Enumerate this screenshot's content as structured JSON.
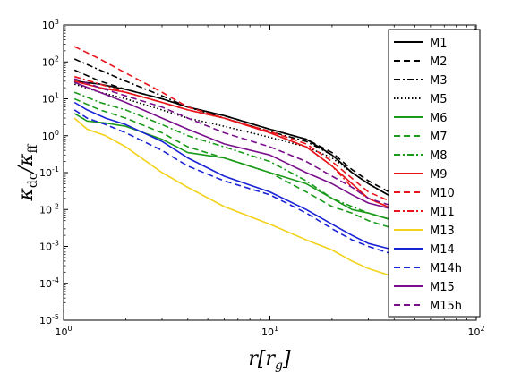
{
  "chart_data": {
    "type": "line",
    "title": "",
    "xlabel": "r[r_g]",
    "ylabel": "κ_dc/κ_ff",
    "x_scale": "log",
    "y_scale": "log",
    "xlim": [
      1,
      100
    ],
    "ylim": [
      1e-05,
      1000
    ],
    "x_ticks": [
      {
        "value": 1,
        "base": "10",
        "exp": "0"
      },
      {
        "value": 10,
        "base": "10",
        "exp": "1"
      },
      {
        "value": 100,
        "base": "10",
        "exp": "2"
      }
    ],
    "y_ticks": [
      {
        "value": 1e-05,
        "base": "10",
        "exp": "-5"
      },
      {
        "value": 0.0001,
        "base": "10",
        "exp": "-4"
      },
      {
        "value": 0.001,
        "base": "10",
        "exp": "-3"
      },
      {
        "value": 0.01,
        "base": "10",
        "exp": "-2"
      },
      {
        "value": 0.1,
        "base": "10",
        "exp": "-1"
      },
      {
        "value": 1,
        "base": "10",
        "exp": "0"
      },
      {
        "value": 10,
        "base": "10",
        "exp": "1"
      },
      {
        "value": 100,
        "base": "10",
        "exp": "2"
      },
      {
        "value": 1000,
        "base": "10",
        "exp": "3"
      }
    ],
    "grid": false,
    "legend_position": "right",
    "series": [
      {
        "name": "M1",
        "color": "#000000",
        "dash": "solid",
        "x": [
          1.13,
          1.5,
          2,
          3,
          4,
          6,
          10,
          15,
          20,
          25,
          30,
          40,
          60
        ],
        "y": [
          30,
          25,
          18,
          10,
          6,
          3.5,
          1.5,
          0.8,
          0.3,
          0.1,
          0.05,
          0.02,
          0.01
        ]
      },
      {
        "name": "M2",
        "color": "#000000",
        "dash": "dashed",
        "x": [
          1.13,
          1.5,
          2,
          3,
          4,
          6,
          10,
          15,
          20,
          25,
          30,
          40,
          60
        ],
        "y": [
          60,
          30,
          18,
          10,
          6,
          3.5,
          1.5,
          0.8,
          0.35,
          0.12,
          0.06,
          0.025,
          0.01
        ]
      },
      {
        "name": "M3",
        "color": "#000000",
        "dash": "dashdot",
        "x": [
          1.13,
          1.5,
          2,
          3,
          4,
          6,
          10,
          15,
          20,
          25,
          30,
          40,
          60
        ],
        "y": [
          120,
          60,
          30,
          12,
          6,
          3,
          1.3,
          0.7,
          0.3,
          0.1,
          0.05,
          0.02,
          0.008
        ]
      },
      {
        "name": "M5",
        "color": "#000000",
        "dash": "dotted",
        "x": [
          1.13,
          1.5,
          2,
          3,
          4,
          6,
          10,
          15,
          20,
          25,
          30,
          40,
          60
        ],
        "y": [
          25,
          15,
          10,
          5,
          3,
          1.8,
          0.9,
          0.5,
          0.25,
          0.1,
          0.05,
          0.02,
          0.008
        ]
      },
      {
        "name": "M6",
        "color": "#1a9a1a",
        "dash": "solid",
        "x": [
          1.13,
          1.3,
          1.6,
          2,
          3,
          4,
          6,
          10,
          15,
          20,
          25,
          30,
          40,
          60
        ],
        "y": [
          4,
          2.5,
          2.2,
          1.8,
          0.8,
          0.35,
          0.25,
          0.1,
          0.05,
          0.02,
          0.01,
          0.008,
          0.005,
          0.003
        ]
      },
      {
        "name": "M7",
        "color": "#1a9a1a",
        "dash": "dashed",
        "x": [
          1.13,
          1.5,
          2,
          3,
          4,
          6,
          10,
          15,
          20,
          25,
          30,
          40,
          60
        ],
        "y": [
          10,
          5,
          3,
          1.2,
          0.5,
          0.25,
          0.1,
          0.03,
          0.012,
          0.008,
          0.005,
          0.003,
          0.002
        ]
      },
      {
        "name": "M8",
        "color": "#1a9a1a",
        "dash": "dashdot",
        "x": [
          1.13,
          1.5,
          2,
          3,
          4,
          6,
          10,
          15,
          20,
          25,
          30,
          40,
          60
        ],
        "y": [
          15,
          8,
          5,
          2,
          1,
          0.5,
          0.2,
          0.06,
          0.02,
          0.012,
          0.008,
          0.005,
          0.003
        ]
      },
      {
        "name": "M9",
        "color": "#e8141b",
        "dash": "solid",
        "x": [
          1.13,
          1.5,
          2,
          3,
          4,
          6,
          10,
          15,
          20,
          25,
          30,
          40,
          60
        ],
        "y": [
          30,
          20,
          15,
          8,
          5,
          3,
          1.2,
          0.5,
          0.15,
          0.05,
          0.02,
          0.01,
          0.005
        ]
      },
      {
        "name": "M10",
        "color": "#e8141b",
        "dash": "dashed",
        "x": [
          1.13,
          1.5,
          2,
          3,
          4,
          6,
          10,
          15,
          20,
          25,
          30,
          40,
          60
        ],
        "y": [
          260,
          120,
          50,
          15,
          6,
          3,
          1.3,
          0.6,
          0.2,
          0.07,
          0.03,
          0.015,
          0.008
        ]
      },
      {
        "name": "M11",
        "color": "#e8141b",
        "dash": "dashdot",
        "x": [
          1.13,
          1.5,
          2,
          3,
          4,
          6,
          10,
          15,
          20,
          25,
          30,
          40,
          60
        ],
        "y": [
          40,
          25,
          15,
          8,
          5,
          3,
          1.2,
          0.5,
          0.15,
          0.04,
          0.02,
          0.01,
          0.005
        ]
      },
      {
        "name": "M13",
        "color": "#f2d21a",
        "dash": "solid",
        "x": [
          1.13,
          1.3,
          1.6,
          2,
          3,
          4,
          6,
          10,
          15,
          20,
          25,
          30,
          40,
          60
        ],
        "y": [
          3,
          1.5,
          1,
          0.5,
          0.1,
          0.04,
          0.012,
          0.004,
          0.0015,
          0.0008,
          0.0004,
          0.00025,
          0.00015,
          0.0001
        ]
      },
      {
        "name": "M14",
        "color": "#1a23d6",
        "dash": "solid",
        "x": [
          1.13,
          1.3,
          1.6,
          2,
          3,
          4,
          6,
          10,
          15,
          20,
          25,
          30,
          40,
          60
        ],
        "y": [
          8,
          5,
          3,
          2,
          0.7,
          0.25,
          0.08,
          0.03,
          0.01,
          0.004,
          0.002,
          0.0012,
          0.0008,
          0.0005
        ]
      },
      {
        "name": "M14h",
        "color": "#1a23d6",
        "dash": "dashed",
        "x": [
          1.13,
          1.3,
          1.6,
          2,
          3,
          4,
          6,
          10,
          15,
          20,
          25,
          30,
          40,
          60
        ],
        "y": [
          5,
          3,
          2,
          1.2,
          0.4,
          0.15,
          0.06,
          0.025,
          0.008,
          0.003,
          0.0015,
          0.001,
          0.0006,
          0.0004
        ]
      },
      {
        "name": "M15",
        "color": "#7a0f8c",
        "dash": "solid",
        "x": [
          1.13,
          1.5,
          2,
          3,
          4,
          6,
          10,
          15,
          20,
          25,
          30,
          40,
          60
        ],
        "y": [
          28,
          15,
          8,
          3,
          1.5,
          0.6,
          0.3,
          0.1,
          0.05,
          0.025,
          0.015,
          0.01,
          0.006
        ]
      },
      {
        "name": "M15h",
        "color": "#7a0f8c",
        "dash": "dashed",
        "x": [
          1.13,
          1.5,
          2,
          3,
          4,
          6,
          10,
          15,
          20,
          25,
          30,
          40,
          60
        ],
        "y": [
          35,
          20,
          12,
          6,
          3,
          1.2,
          0.5,
          0.2,
          0.08,
          0.04,
          0.02,
          0.012,
          0.008
        ]
      }
    ]
  }
}
